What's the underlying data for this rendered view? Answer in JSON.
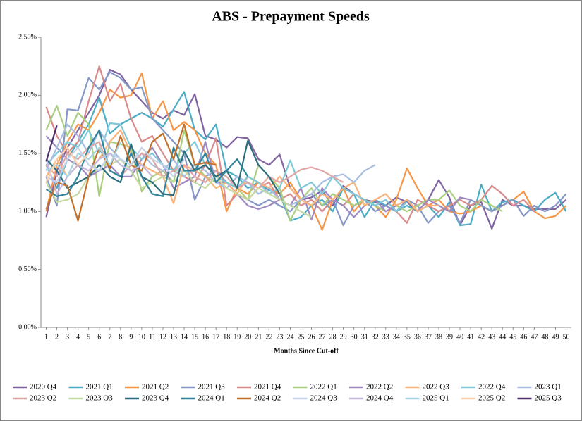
{
  "chart_data": {
    "type": "line",
    "title": "ABS - Prepayment Speeds",
    "x_label": "Months  Since Cut-off",
    "x": [
      1,
      2,
      3,
      4,
      5,
      6,
      7,
      8,
      9,
      10,
      11,
      12,
      13,
      14,
      15,
      16,
      17,
      18,
      19,
      20,
      21,
      22,
      23,
      24,
      25,
      26,
      27,
      28,
      29,
      30,
      31,
      32,
      33,
      34,
      35,
      36,
      37,
      38,
      39,
      40,
      41,
      42,
      43,
      44,
      45,
      46,
      47,
      48,
      49,
      50
    ],
    "xlim": [
      0.5,
      50.5
    ],
    "ylim": [
      0,
      2.5
    ],
    "yticks": [
      {
        "value": 0,
        "label": "0.00%"
      },
      {
        "value": 0.5,
        "label": "0.50%"
      },
      {
        "value": 1,
        "label": "1.00%"
      },
      {
        "value": 1.5,
        "label": "1.50%"
      },
      {
        "value": 2,
        "label": "2.00%"
      },
      {
        "value": 2.5,
        "label": "2.50%"
      }
    ],
    "grid": false,
    "legend": "bottom",
    "series": [
      {
        "name": "2020 Q4",
        "color": "#8064a2",
        "values": [
          0.95,
          1.35,
          1.55,
          1.7,
          1.85,
          2.0,
          2.22,
          2.18,
          2.05,
          1.95,
          1.85,
          1.8,
          1.87,
          1.83,
          2.01,
          1.65,
          1.62,
          1.55,
          1.64,
          1.63,
          1.45,
          1.4,
          1.49,
          1.2,
          1.1,
          1.12,
          1.18,
          1.05,
          1.22,
          1.15,
          1.1,
          1.08,
          1.05,
          1.12,
          1.08,
          1.0,
          1.1,
          1.27,
          1.12,
          0.88,
          1.05,
          1.08,
          0.85,
          1.1,
          1.05,
          1.05,
          1.02,
          1.02,
          1.02,
          1.1
        ]
      },
      {
        "name": "2021 Q1",
        "color": "#4bacc6",
        "values": [
          1.4,
          1.2,
          1.45,
          1.6,
          1.75,
          1.98,
          1.67,
          1.75,
          1.8,
          1.85,
          1.8,
          1.73,
          1.88,
          2.03,
          1.7,
          1.62,
          1.75,
          1.35,
          1.3,
          1.2,
          1.25,
          1.18,
          1.15,
          0.92,
          0.95,
          1.05,
          1.1,
          1.0,
          1.2,
          1.15,
          0.95,
          1.1,
          1.05,
          1.0,
          1.05,
          1.0,
          1.05,
          0.95,
          1.08,
          0.88,
          0.89,
          1.23,
          1.0,
          1.08,
          1.1,
          1.05,
          1.0,
          1.1,
          1.16,
          1.0
        ]
      },
      {
        "name": "2021 Q2",
        "color": "#f79646",
        "values": [
          1.0,
          1.4,
          1.6,
          1.75,
          1.7,
          1.85,
          2.05,
          1.98,
          2.0,
          2.19,
          1.8,
          1.95,
          1.7,
          1.77,
          1.7,
          1.5,
          1.4,
          1.0,
          1.2,
          1.15,
          1.25,
          1.2,
          1.15,
          1.25,
          1.1,
          1.05,
          0.84,
          1.1,
          1.2,
          1.0,
          1.1,
          1.05,
          0.95,
          1.1,
          1.37,
          1.2,
          1.05,
          1.1,
          1.0,
          0.98,
          1.0,
          1.05,
          1.0,
          1.05,
          1.1,
          1.17,
          1.0,
          0.94,
          0.96,
          1.05
        ]
      },
      {
        "name": "2021 Q3",
        "color": "#8497c6",
        "values": [
          1.3,
          1.05,
          1.88,
          1.87,
          2.15,
          2.05,
          2.2,
          2.15,
          2.05,
          2.07,
          1.8,
          1.7,
          1.6,
          1.5,
          1.1,
          1.3,
          1.35,
          1.25,
          1.15,
          1.1,
          1.05,
          1.1,
          1.05,
          1.0,
          1.1,
          1.15,
          1.05,
          1.1,
          0.88,
          1.05,
          1.1,
          1.0,
          1.05,
          1.0,
          1.1,
          1.05,
          0.9,
          1.0,
          1.05,
          0.9,
          1.1,
          1.05,
          1.0,
          1.05,
          1.1,
          0.96,
          1.05,
          1.0,
          1.05,
          1.15
        ]
      },
      {
        "name": "2021 Q4",
        "color": "#d98a8a",
        "values": [
          1.9,
          1.65,
          1.5,
          1.6,
          1.95,
          2.25,
          1.95,
          2.1,
          1.8,
          1.6,
          1.65,
          1.5,
          1.35,
          1.3,
          1.25,
          1.4,
          1.63,
          1.05,
          1.15,
          1.1,
          1.2,
          1.25,
          1.1,
          1.15,
          1.05,
          1.1,
          1.0,
          1.1,
          1.05,
          1.15,
          1.1,
          1.05,
          1.1,
          1.0,
          0.9,
          1.1,
          1.05,
          1.0,
          1.05,
          1.1,
          1.05,
          1.1,
          1.22,
          1.15,
          1.05,
          1.1,
          1.0,
          null,
          null,
          null
        ]
      },
      {
        "name": "2022 Q1",
        "color": "#a9cf7f",
        "values": [
          1.7,
          1.91,
          1.65,
          1.85,
          1.75,
          1.13,
          1.6,
          1.58,
          1.55,
          1.17,
          1.3,
          1.35,
          1.25,
          1.7,
          1.4,
          1.3,
          1.25,
          1.35,
          1.2,
          1.1,
          1.4,
          1.3,
          1.2,
          0.92,
          1.1,
          1.2,
          1.05,
          1.15,
          1.1,
          1.05,
          1.1,
          1.05,
          1.0,
          1.05,
          1.0,
          1.05,
          1.1,
          1.1,
          1.18,
          1.05,
          1.0,
          1.1,
          1.05,
          1.0,
          null,
          null,
          null,
          null,
          null,
          null
        ]
      },
      {
        "name": "2022 Q2",
        "color": "#9e88c0",
        "values": [
          1.65,
          1.55,
          1.45,
          1.4,
          1.3,
          1.35,
          1.4,
          1.3,
          1.3,
          1.45,
          1.55,
          1.4,
          1.2,
          1.25,
          1.3,
          1.6,
          1.25,
          1.25,
          1.15,
          1.05,
          1.02,
          1.05,
          1.1,
          1.05,
          1.2,
          0.93,
          1.2,
          1.1,
          1.05,
          0.95,
          1.05,
          1.1,
          1.0,
          1.05,
          1.1,
          1.0,
          1.1,
          1.05,
          1.0,
          1.12,
          1.1,
          null,
          null,
          null,
          null,
          null,
          null,
          null,
          null,
          null
        ]
      },
      {
        "name": "2022 Q3",
        "color": "#f9b27a",
        "values": [
          1.3,
          1.45,
          1.3,
          1.4,
          1.35,
          1.45,
          1.6,
          1.7,
          1.5,
          1.4,
          1.35,
          1.3,
          1.07,
          1.4,
          1.35,
          1.3,
          1.2,
          1.25,
          1.15,
          1.3,
          1.25,
          1.2,
          1.3,
          1.2,
          1.1,
          1.05,
          1.15,
          1.1,
          1.2,
          1.25,
          1.05,
          1.1,
          1.15,
          1.05,
          1.1,
          1.0,
          1.05,
          1.05,
          null,
          null,
          null,
          null,
          null,
          null,
          null,
          null,
          null,
          null,
          null,
          null
        ]
      },
      {
        "name": "2022 Q4",
        "color": "#7fcad9",
        "values": [
          1.4,
          1.5,
          1.6,
          1.55,
          1.7,
          1.5,
          1.76,
          1.75,
          1.55,
          1.45,
          1.5,
          1.4,
          1.35,
          1.5,
          1.6,
          1.4,
          1.3,
          1.25,
          1.2,
          1.3,
          1.25,
          1.15,
          1.2,
          1.44,
          1.2,
          1.25,
          1.15,
          1.3,
          1.2,
          1.15,
          1.1,
          1.05,
          1.1,
          1.0,
          1.08,
          null,
          null,
          null,
          null,
          null,
          null,
          null,
          null,
          null,
          null,
          null,
          null,
          null,
          null,
          null
        ]
      },
      {
        "name": "2023 Q1",
        "color": "#a9bde0",
        "values": [
          1.35,
          1.55,
          1.75,
          1.65,
          1.5,
          1.7,
          1.55,
          1.45,
          1.4,
          1.5,
          1.4,
          1.35,
          1.45,
          1.3,
          1.4,
          1.35,
          1.25,
          1.2,
          1.3,
          1.25,
          1.15,
          1.2,
          1.1,
          1.05,
          1.1,
          1.15,
          1.25,
          1.3,
          1.32,
          1.25,
          1.35,
          1.4,
          null,
          null,
          null,
          null,
          null,
          null,
          null,
          null,
          null,
          null,
          null,
          null,
          null,
          null,
          null,
          null,
          null,
          null
        ]
      },
      {
        "name": "2023 Q2",
        "color": "#e0a6a6",
        "values": [
          1.4,
          1.3,
          1.5,
          1.45,
          1.55,
          1.6,
          1.35,
          1.3,
          1.4,
          1.5,
          1.45,
          1.3,
          1.35,
          1.4,
          1.3,
          1.25,
          1.35,
          1.3,
          1.2,
          1.25,
          1.2,
          1.3,
          1.25,
          1.3,
          1.36,
          1.38,
          1.35,
          1.3,
          1.25,
          null,
          null,
          null,
          null,
          null,
          null,
          null,
          null,
          null,
          null,
          null,
          null,
          null,
          null,
          null,
          null,
          null,
          null,
          null,
          null,
          null
        ]
      },
      {
        "name": "2023 Q3",
        "color": "#c5dba3",
        "values": [
          1.25,
          1.08,
          1.1,
          1.15,
          1.3,
          1.55,
          1.4,
          1.45,
          1.35,
          1.2,
          1.25,
          1.3,
          1.25,
          1.35,
          1.25,
          1.2,
          1.3,
          1.2,
          1.15,
          1.1,
          1.2,
          1.15,
          1.1,
          1.05,
          1.0,
          0.95,
          null,
          null,
          null,
          null,
          null,
          null,
          null,
          null,
          null,
          null,
          null,
          null,
          null,
          null,
          null,
          null,
          null,
          null,
          null,
          null,
          null,
          null,
          null,
          null
        ]
      },
      {
        "name": "2023 Q4",
        "color": "#2c6e7d",
        "values": [
          1.45,
          1.35,
          1.2,
          1.25,
          1.3,
          1.4,
          1.3,
          1.25,
          1.58,
          1.3,
          1.25,
          1.15,
          1.14,
          1.52,
          1.35,
          1.4,
          1.3,
          1.35,
          1.2,
          1.61,
          1.4,
          1.3,
          1.15,
          null,
          null,
          null,
          null,
          null,
          null,
          null,
          null,
          null,
          null,
          null,
          null,
          null,
          null,
          null,
          null,
          null,
          null,
          null,
          null,
          null,
          null,
          null,
          null,
          null,
          null,
          null
        ]
      },
      {
        "name": "2024 Q1",
        "color": "#31849b",
        "values": [
          1.19,
          1.13,
          1.15,
          1.3,
          1.55,
          1.7,
          1.35,
          1.3,
          1.5,
          1.3,
          1.15,
          1.13,
          1.55,
          1.35,
          1.35,
          1.5,
          1.25,
          1.35,
          1.45,
          1.3,
          null,
          null,
          null,
          null,
          null,
          null,
          null,
          null,
          null,
          null,
          null,
          null,
          null,
          null,
          null,
          null,
          null,
          null,
          null,
          null,
          null,
          null,
          null,
          null,
          null,
          null,
          null,
          null,
          null,
          null
        ]
      },
      {
        "name": "2024 Q2",
        "color": "#c0702a",
        "values": [
          1.02,
          1.25,
          1.22,
          0.92,
          1.3,
          1.55,
          1.37,
          1.65,
          1.4,
          1.35,
          1.6,
          1.67,
          1.45,
          1.75,
          1.4,
          1.42,
          1.4,
          null,
          null,
          null,
          null,
          null,
          null,
          null,
          null,
          null,
          null,
          null,
          null,
          null,
          null,
          null,
          null,
          null,
          null,
          null,
          null,
          null,
          null,
          null,
          null,
          null,
          null,
          null,
          null,
          null,
          null,
          null,
          null,
          null
        ]
      },
      {
        "name": "2024 Q3",
        "color": "#c6d3e8",
        "values": [
          1.3,
          1.25,
          1.45,
          1.55,
          1.4,
          1.35,
          1.5,
          1.45,
          1.4,
          1.55,
          1.45,
          1.4,
          1.3,
          1.45,
          null,
          null,
          null,
          null,
          null,
          null,
          null,
          null,
          null,
          null,
          null,
          null,
          null,
          null,
          null,
          null,
          null,
          null,
          null,
          null,
          null,
          null,
          null,
          null,
          null,
          null,
          null,
          null,
          null,
          null,
          null,
          null,
          null,
          null,
          null,
          null
        ]
      },
      {
        "name": "2024 Q4",
        "color": "#c4b8db",
        "values": [
          1.45,
          1.15,
          1.3,
          1.4,
          1.35,
          1.45,
          1.5,
          1.4,
          1.35,
          1.4,
          1.3,
          null,
          null,
          null,
          null,
          null,
          null,
          null,
          null,
          null,
          null,
          null,
          null,
          null,
          null,
          null,
          null,
          null,
          null,
          null,
          null,
          null,
          null,
          null,
          null,
          null,
          null,
          null,
          null,
          null,
          null,
          null,
          null,
          null,
          null,
          null,
          null,
          null,
          null,
          null
        ]
      },
      {
        "name": "2025 Q1",
        "color": "#a6d6e3",
        "values": [
          1.35,
          1.4,
          1.3,
          1.5,
          1.45,
          1.55,
          1.4,
          1.6,
          null,
          null,
          null,
          null,
          null,
          null,
          null,
          null,
          null,
          null,
          null,
          null,
          null,
          null,
          null,
          null,
          null,
          null,
          null,
          null,
          null,
          null,
          null,
          null,
          null,
          null,
          null,
          null,
          null,
          null,
          null,
          null,
          null,
          null,
          null,
          null,
          null,
          null,
          null,
          null,
          null,
          null
        ]
      },
      {
        "name": "2025 Q2",
        "color": "#fbcfa8",
        "values": [
          1.25,
          1.45,
          1.55,
          1.4,
          1.5,
          null,
          null,
          null,
          null,
          null,
          null,
          null,
          null,
          null,
          null,
          null,
          null,
          null,
          null,
          null,
          null,
          null,
          null,
          null,
          null,
          null,
          null,
          null,
          null,
          null,
          null,
          null,
          null,
          null,
          null,
          null,
          null,
          null,
          null,
          null,
          null,
          null,
          null,
          null,
          null,
          null,
          null,
          null,
          null,
          null
        ]
      },
      {
        "name": "2025 Q3",
        "color": "#4b2e6b",
        "values": [
          1.43,
          1.74,
          null,
          null,
          null,
          null,
          null,
          null,
          null,
          null,
          null,
          null,
          null,
          null,
          null,
          null,
          null,
          null,
          null,
          null,
          null,
          null,
          null,
          null,
          null,
          null,
          null,
          null,
          null,
          null,
          null,
          null,
          null,
          null,
          null,
          null,
          null,
          null,
          null,
          null,
          null,
          null,
          null,
          null,
          null,
          null,
          null,
          null,
          null,
          null
        ]
      }
    ]
  }
}
